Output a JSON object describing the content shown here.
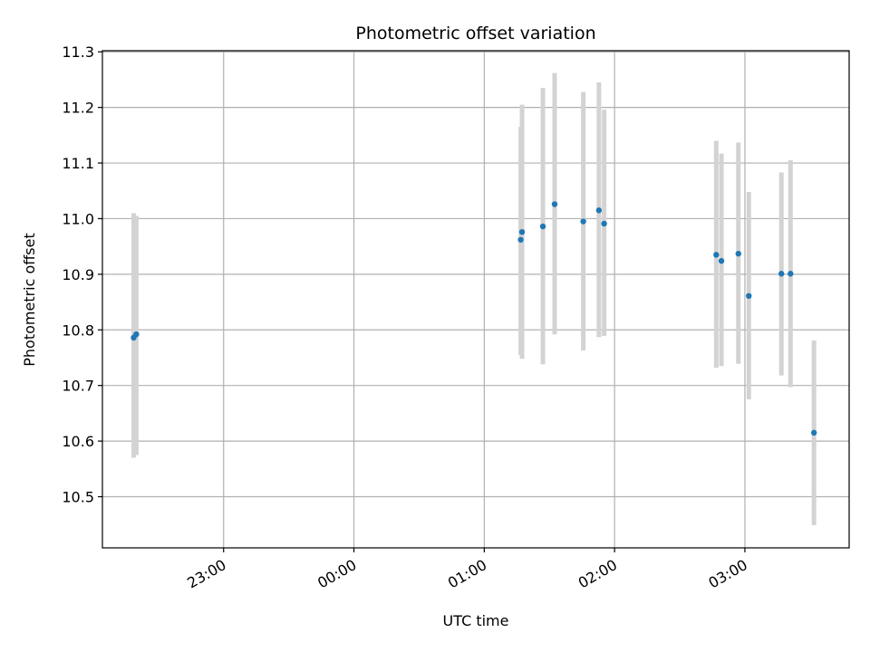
{
  "chart_data": {
    "type": "scatter",
    "title": "Photometric offset variation",
    "xlabel": "UTC time",
    "ylabel": "Photometric offset",
    "x_unit": "hours relative to 00:00 UTC",
    "xlim": [
      -1.93,
      3.8
    ],
    "ylim": [
      10.408,
      11.302
    ],
    "x_ticks": [
      {
        "value": -1,
        "label": "23:00"
      },
      {
        "value": 0,
        "label": "00:00"
      },
      {
        "value": 1,
        "label": "01:00"
      },
      {
        "value": 2,
        "label": "02:00"
      },
      {
        "value": 3,
        "label": "03:00"
      }
    ],
    "y_ticks": [
      {
        "value": 10.5,
        "label": "10.5"
      },
      {
        "value": 10.6,
        "label": "10.6"
      },
      {
        "value": 10.7,
        "label": "10.7"
      },
      {
        "value": 10.8,
        "label": "10.8"
      },
      {
        "value": 10.9,
        "label": "10.9"
      },
      {
        "value": 11.0,
        "label": "11.0"
      },
      {
        "value": 11.1,
        "label": "11.1"
      },
      {
        "value": 11.2,
        "label": "11.2"
      },
      {
        "value": 11.3,
        "label": "11.3"
      }
    ],
    "grid": true,
    "point_color": "#1f77b4",
    "errorbar_color": "#d3d3d3",
    "series": [
      {
        "points": [
          {
            "x": -1.69,
            "y": 10.786,
            "err_low": 10.57,
            "err_high": 11.01
          },
          {
            "x": -1.67,
            "y": 10.792,
            "err_low": 10.575,
            "err_high": 11.005
          },
          {
            "x": 1.28,
            "y": 10.962,
            "err_low": 10.755,
            "err_high": 11.165
          },
          {
            "x": 1.29,
            "y": 10.976,
            "err_low": 10.748,
            "err_high": 11.205
          },
          {
            "x": 1.45,
            "y": 10.986,
            "err_low": 10.738,
            "err_high": 11.235
          },
          {
            "x": 1.54,
            "y": 11.026,
            "err_low": 10.792,
            "err_high": 11.262
          },
          {
            "x": 1.76,
            "y": 10.995,
            "err_low": 10.763,
            "err_high": 11.228
          },
          {
            "x": 1.88,
            "y": 11.015,
            "err_low": 10.787,
            "err_high": 11.245
          },
          {
            "x": 1.92,
            "y": 10.991,
            "err_low": 10.789,
            "err_high": 11.196
          },
          {
            "x": 2.78,
            "y": 10.935,
            "err_low": 10.732,
            "err_high": 11.14
          },
          {
            "x": 2.82,
            "y": 10.924,
            "err_low": 10.735,
            "err_high": 11.117
          },
          {
            "x": 2.95,
            "y": 10.937,
            "err_low": 10.739,
            "err_high": 11.137
          },
          {
            "x": 3.03,
            "y": 10.861,
            "err_low": 10.675,
            "err_high": 11.048
          },
          {
            "x": 3.28,
            "y": 10.901,
            "err_low": 10.718,
            "err_high": 11.083
          },
          {
            "x": 3.35,
            "y": 10.901,
            "err_low": 10.697,
            "err_high": 11.105
          },
          {
            "x": 3.53,
            "y": 10.615,
            "err_low": 10.449,
            "err_high": 10.781
          }
        ]
      }
    ]
  }
}
